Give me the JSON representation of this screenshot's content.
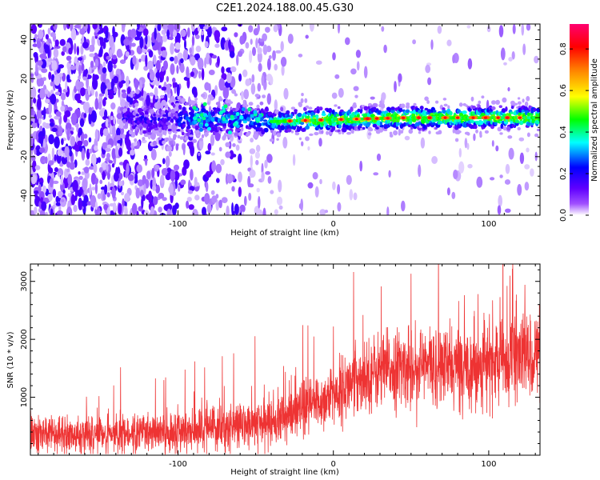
{
  "title": "C2E1.2024.188.00.45.G30",
  "chart_data": [
    {
      "type": "heatmap",
      "xlabel": "Height of straight line (km)",
      "ylabel": "Frequency (Hz)",
      "xlim": [
        -195,
        133
      ],
      "ylim": [
        -50,
        48
      ],
      "xticks": [
        -100,
        0,
        100
      ],
      "xtick_labels": [
        "-100",
        "0",
        "100"
      ],
      "yticks": [
        -40,
        -20,
        0,
        20,
        40
      ],
      "ytick_labels": [
        "-40",
        "-20",
        "0",
        "20",
        "40"
      ],
      "colorbar": {
        "label": "Normalized spectral amplitude",
        "range": [
          0,
          0.92
        ],
        "ticks": [
          0.0,
          0.2,
          0.4,
          0.6,
          0.8
        ],
        "tick_labels": [
          "0.0",
          "0.2",
          "0.4",
          "0.6",
          "0.8"
        ],
        "colormap": [
          "#ffffff",
          "#6000ff",
          "#0000ff",
          "#00ffff",
          "#00ff00",
          "#ffff00",
          "#ff8000",
          "#ff0000",
          "#ff0060"
        ]
      },
      "description_of_content": "Signal band centered near 0 Hz from about -40 km to 133 km with red peaks near 0 Hz; scattered purple noise dominates below -30 km.",
      "peak_line_frequency_hz": [
        [
          -130,
          -2
        ],
        [
          -80,
          0
        ],
        [
          -40,
          -2
        ],
        [
          0,
          -1
        ],
        [
          50,
          0
        ],
        [
          100,
          0
        ],
        [
          133,
          0
        ]
      ]
    },
    {
      "type": "line",
      "xlabel": "Height of straight line (km)",
      "ylabel": "SNR (10 * v/v)",
      "xlim": [
        -195,
        133
      ],
      "ylim": [
        0,
        3300
      ],
      "xticks": [
        -100,
        0,
        100
      ],
      "xtick_labels": [
        "-100",
        "0",
        "100"
      ],
      "yticks": [
        1000,
        2000,
        3000
      ],
      "ytick_labels": [
        "1000",
        "2000",
        "3000"
      ],
      "color": "#ee3333",
      "trend": {
        "x": [
          -195,
          -150,
          -110,
          -80,
          -50,
          -30,
          -10,
          0,
          10,
          20,
          40,
          60,
          80,
          100,
          120,
          133
        ],
        "y": [
          350,
          350,
          380,
          450,
          520,
          650,
          900,
          1050,
          1200,
          1400,
          1500,
          1550,
          1520,
          1600,
          1700,
          1750
        ]
      },
      "noise_spread": {
        "x": [
          -195,
          -100,
          -50,
          0,
          20,
          80,
          133
        ],
        "y": [
          220,
          250,
          300,
          380,
          450,
          500,
          550
        ]
      }
    }
  ]
}
